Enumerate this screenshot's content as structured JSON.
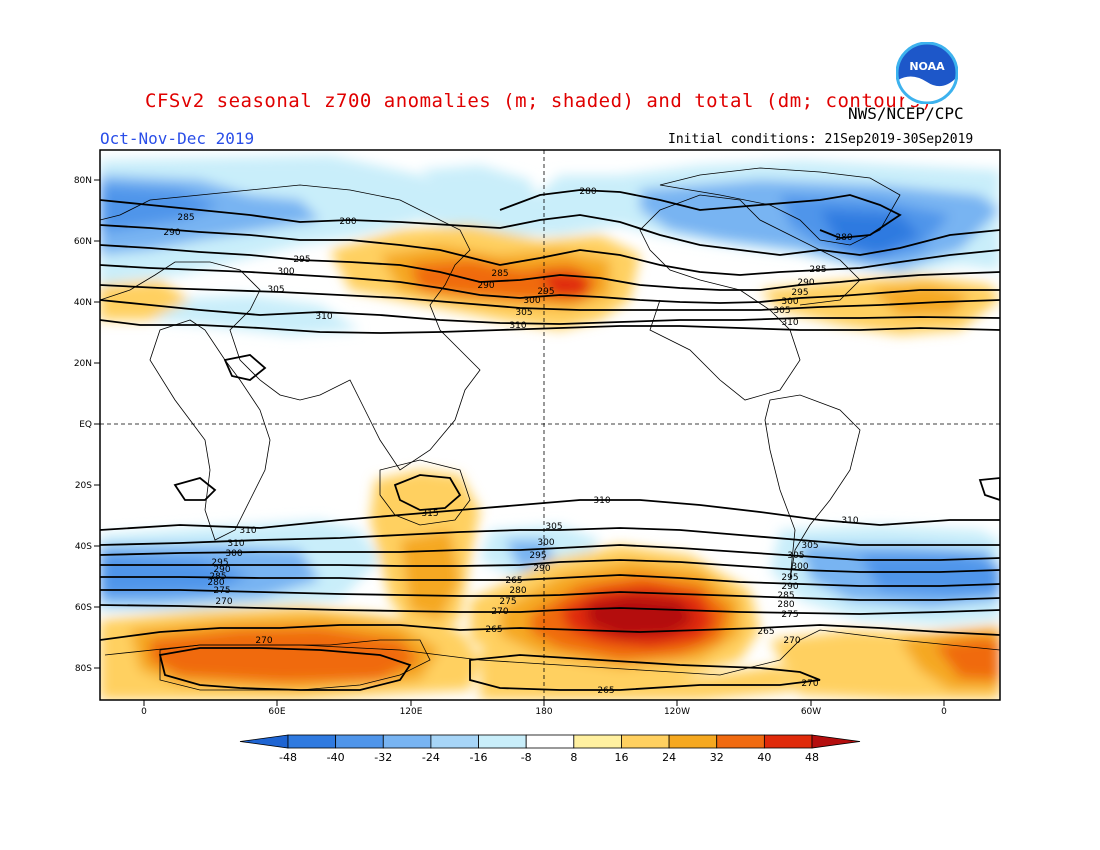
{
  "header": {
    "title": "CFSv2 seasonal z700 anomalies (m; shaded) and total (dm; contours)",
    "agency": "NWS/NCEP/CPC",
    "season": "Oct-Nov-Dec 2019",
    "initial_conditions": "Initial conditions: 21Sep2019-30Sep2019",
    "logo_text": "NOAA"
  },
  "map": {
    "lat_labels": [
      "80N",
      "60N",
      "40N",
      "20N",
      "EQ",
      "20S",
      "40S",
      "60S",
      "80S"
    ],
    "lon_labels": [
      "0",
      "60E",
      "120E",
      "180",
      "120W",
      "60W",
      "0"
    ],
    "contour_labels": [
      "280",
      "285",
      "290",
      "295",
      "300",
      "305",
      "310",
      "280",
      "285",
      "290",
      "295",
      "300",
      "305",
      "310",
      "280",
      "285",
      "290",
      "295",
      "300",
      "305",
      "310",
      "310",
      "310",
      "310",
      "315",
      "310",
      "305",
      "300",
      "295",
      "290",
      "285",
      "280",
      "275",
      "270",
      "305",
      "300",
      "295",
      "290",
      "265",
      "280",
      "275",
      "270",
      "305",
      "300",
      "295",
      "290",
      "285",
      "280",
      "275",
      "270",
      "270",
      "265",
      "265",
      "265",
      "270"
    ]
  },
  "colorbar": {
    "labels": [
      "-48",
      "-40",
      "-32",
      "-24",
      "-16",
      "-8",
      "8",
      "16",
      "24",
      "32",
      "40",
      "48"
    ],
    "colors": [
      "#1e64d2",
      "#2f7ae0",
      "#4f95ea",
      "#78b4f2",
      "#a7d5f7",
      "#c9eefa",
      "#ffffff",
      "#fff0a0",
      "#ffd060",
      "#f5a820",
      "#f06a10",
      "#e02a0a",
      "#b40e0e"
    ]
  }
}
